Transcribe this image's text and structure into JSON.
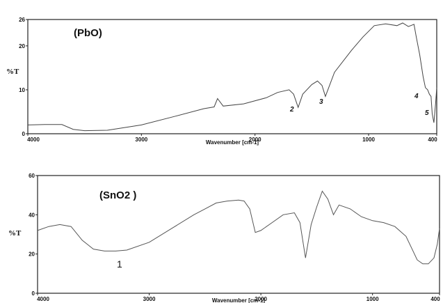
{
  "chart_data": [
    {
      "type": "line",
      "title": "(PbO)",
      "xlabel": "Wavenumber [cm-1]",
      "ylabel": "%T",
      "xlim": [
        4000,
        400
      ],
      "ylim": [
        0,
        26
      ],
      "x_ticks": [
        "4000",
        "3000",
        "2000",
        "1000",
        "400"
      ],
      "y_ticks": [
        "0",
        "10",
        "20",
        "26"
      ],
      "grid": false,
      "series": [
        {
          "x": [
            4000,
            3850,
            3700,
            3600,
            3500,
            3300,
            3000,
            2700,
            2450,
            2360,
            2330,
            2280,
            2100,
            1900,
            1800,
            1700,
            1660,
            1620,
            1580,
            1500,
            1450,
            1410,
            1380,
            1300,
            1150,
            1050,
            950,
            850,
            750,
            700,
            650,
            600,
            580,
            550,
            520,
            500,
            480,
            465,
            450,
            440,
            425,
            410,
            400
          ],
          "y": [
            2,
            2.1,
            2.1,
            1,
            0.7,
            0.8,
            2,
            4,
            5.7,
            6.1,
            8,
            6.3,
            6.8,
            8.2,
            9.4,
            10,
            9,
            6,
            9,
            11.2,
            12,
            11,
            8.5,
            14,
            19,
            22,
            24.6,
            25,
            24.6,
            25.2,
            24.4,
            24.9,
            22,
            18,
            13,
            10.5,
            10,
            9,
            8.5,
            4.5,
            2.5,
            7,
            10.5
          ]
        }
      ],
      "annotations": [
        "2",
        "3",
        "4",
        "5"
      ]
    },
    {
      "type": "line",
      "title": "(SnO2 )",
      "xlabel": "Wavenumber [cm-1]",
      "ylabel": "%T",
      "xlim": [
        4000,
        400
      ],
      "ylim": [
        0,
        60
      ],
      "x_ticks": [
        "4000",
        "3000",
        "2000",
        "1000",
        "400"
      ],
      "y_ticks": [
        "0",
        "20",
        "40",
        "60"
      ],
      "grid": false,
      "series": [
        {
          "x": [
            4000,
            3900,
            3800,
            3700,
            3600,
            3500,
            3400,
            3300,
            3200,
            3000,
            2800,
            2600,
            2500,
            2400,
            2300,
            2200,
            2150,
            2100,
            2050,
            2000,
            1900,
            1800,
            1700,
            1650,
            1600,
            1550,
            1500,
            1450,
            1400,
            1350,
            1300,
            1200,
            1100,
            1000,
            900,
            800,
            700,
            650,
            600,
            550,
            500,
            450,
            420,
            400
          ],
          "y": [
            32,
            34,
            35,
            34,
            27,
            22.5,
            21.5,
            21.5,
            22,
            26,
            33,
            40,
            43,
            46,
            47,
            47.5,
            47,
            43,
            31,
            32,
            36,
            40,
            41,
            36,
            18,
            35,
            44,
            52,
            48,
            40,
            45,
            43,
            39,
            37,
            36,
            34,
            29,
            23,
            17,
            15,
            15,
            18,
            25,
            33
          ]
        }
      ],
      "annotations": [
        "1"
      ]
    }
  ]
}
